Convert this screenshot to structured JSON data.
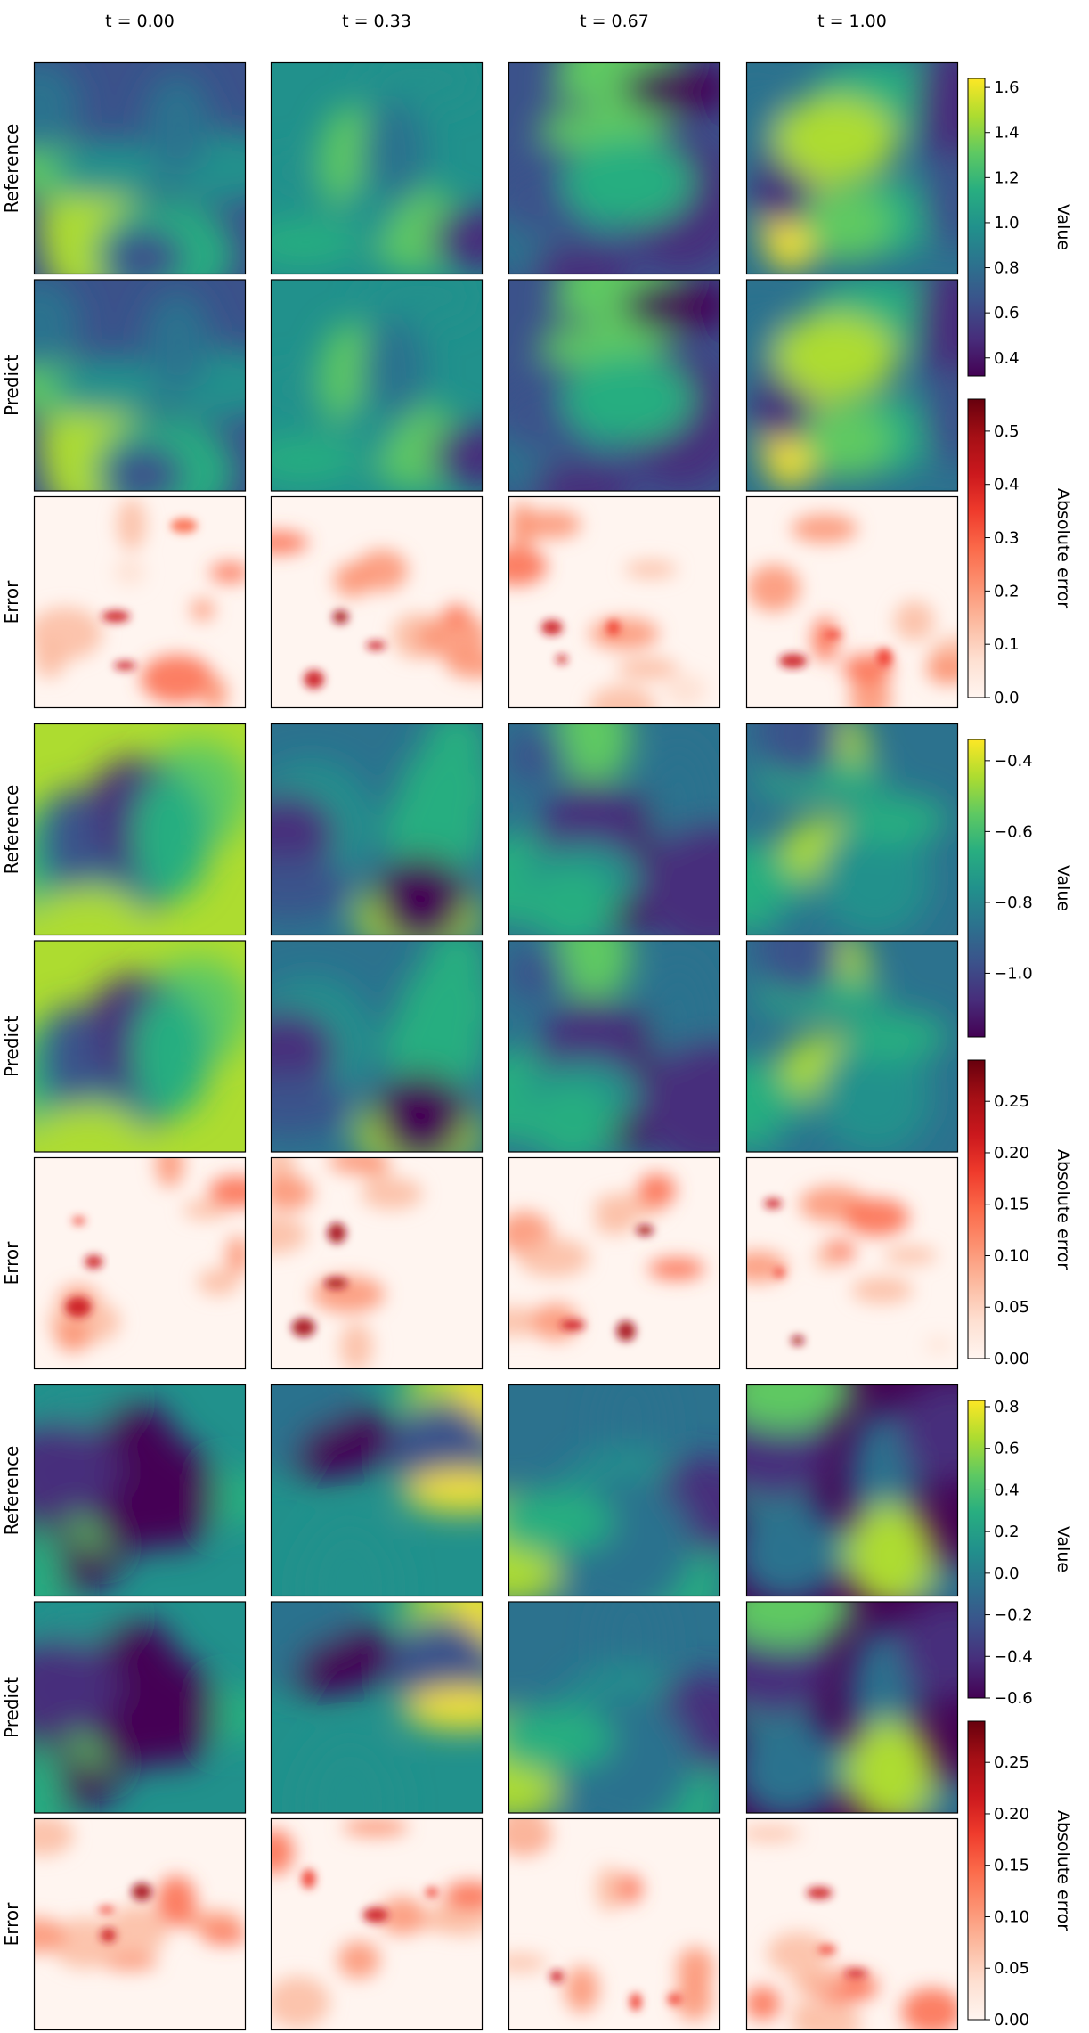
{
  "figure": {
    "row_labels": [
      "Reference",
      "Predict",
      "Error"
    ],
    "time_labels": [
      "t = 0.00",
      "t = 0.33",
      "t = 0.67",
      "t = 1.00"
    ]
  },
  "colormaps": {
    "viridis": [
      "#440154",
      "#472d7b",
      "#3b528b",
      "#2c728e",
      "#21918c",
      "#28ae80",
      "#5ec962",
      "#addc30",
      "#fde725"
    ],
    "reds": [
      "#fff5f0",
      "#fee0d2",
      "#fcbba1",
      "#fc9272",
      "#fb6a4a",
      "#ef3b2c",
      "#cb181d",
      "#a50f15",
      "#67000d"
    ]
  },
  "chart_data": [
    {
      "type": "heatmap",
      "group": 1,
      "rows": [
        "Reference",
        "Predict",
        "Error"
      ],
      "columns": [
        "t = 0.00",
        "t = 0.33",
        "t = 0.67",
        "t = 1.00"
      ],
      "value_colorbar": {
        "label": "Value",
        "range": [
          0.32,
          1.64
        ],
        "ticks": [
          0.4,
          0.6,
          0.8,
          1.0,
          1.2,
          1.4,
          1.6
        ],
        "tick_labels": [
          "0.4",
          "0.6",
          "0.8",
          "1.0",
          "1.2",
          "1.4",
          "1.6"
        ]
      },
      "error_colorbar": {
        "label": "Absolute error",
        "range": [
          0.0,
          0.56
        ],
        "ticks": [
          0.0,
          0.1,
          0.2,
          0.3,
          0.4,
          0.5
        ],
        "tick_labels": [
          "0.0",
          "0.1",
          "0.2",
          "0.3",
          "0.4",
          "0.5"
        ]
      }
    },
    {
      "type": "heatmap",
      "group": 2,
      "rows": [
        "Reference",
        "Predict",
        "Error"
      ],
      "columns": [
        "t = 0.00",
        "t = 0.33",
        "t = 0.67",
        "t = 1.00"
      ],
      "value_colorbar": {
        "label": "Value",
        "range": [
          -1.18,
          -0.34
        ],
        "ticks": [
          -1.0,
          -0.8,
          -0.6,
          -0.4
        ],
        "tick_labels": [
          "−1.0",
          "−0.8",
          "−0.6",
          "−0.4"
        ]
      },
      "error_colorbar": {
        "label": "Absolute error",
        "range": [
          0.0,
          0.29
        ],
        "ticks": [
          0.0,
          0.05,
          0.1,
          0.15,
          0.2,
          0.25
        ],
        "tick_labels": [
          "0.00",
          "0.05",
          "0.10",
          "0.15",
          "0.20",
          "0.25"
        ]
      }
    },
    {
      "type": "heatmap",
      "group": 3,
      "rows": [
        "Reference",
        "Predict",
        "Error"
      ],
      "columns": [
        "t = 0.00",
        "t = 0.33",
        "t = 0.67",
        "t = 1.00"
      ],
      "value_colorbar": {
        "label": "Value",
        "range": [
          -0.6,
          0.83
        ],
        "ticks": [
          -0.6,
          -0.4,
          -0.2,
          0.0,
          0.2,
          0.4,
          0.6,
          0.8
        ],
        "tick_labels": [
          "−0.6",
          "−0.4",
          "−0.2",
          "0.0",
          "0.2",
          "0.4",
          "0.6",
          "0.8"
        ]
      },
      "error_colorbar": {
        "label": "Absolute error",
        "range": [
          0.0,
          0.29
        ],
        "ticks": [
          0.0,
          0.05,
          0.1,
          0.15,
          0.2,
          0.25
        ],
        "tick_labels": [
          "0.00",
          "0.05",
          "0.10",
          "0.15",
          "0.20",
          "0.25"
        ]
      }
    }
  ]
}
